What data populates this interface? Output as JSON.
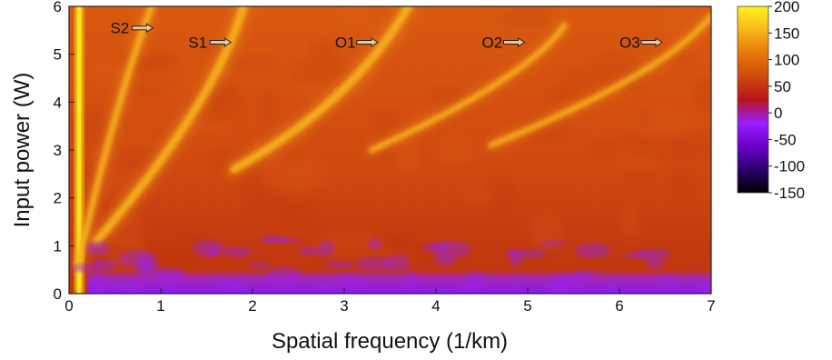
{
  "chart_data": {
    "type": "heatmap",
    "xlabel": "Spatial frequency (1/km)",
    "ylabel": "Input power (W)",
    "xlim": [
      0,
      7
    ],
    "ylim": [
      0,
      6
    ],
    "x_ticks": [
      0,
      1,
      2,
      3,
      4,
      5,
      6,
      7
    ],
    "y_ticks": [
      0,
      1,
      2,
      3,
      4,
      5,
      6
    ],
    "colorbar": {
      "range": [
        -150,
        200
      ],
      "ticks": [
        200,
        150,
        100,
        50,
        0,
        -50,
        -100,
        -150
      ],
      "colors": [
        "#000000",
        "#2a006e",
        "#6a00c8",
        "#9a1eff",
        "#b8141a",
        "#d04a0c",
        "#e8780a",
        "#f8b81a",
        "#fff21a"
      ]
    },
    "background_value": 80,
    "low_power_band": {
      "value": -40,
      "y_range": [
        0,
        0.5
      ]
    },
    "features": [
      {
        "label": "S2",
        "points": [
          [
            0.1,
            0.6
          ],
          [
            0.5,
            4.0
          ],
          [
            0.9,
            6.0
          ]
        ]
      },
      {
        "label": "S1",
        "points": [
          [
            0.3,
            1.1
          ],
          [
            1.6,
            4.0
          ],
          [
            1.9,
            6.0
          ]
        ]
      },
      {
        "label": "O1",
        "points": [
          [
            1.8,
            2.6
          ],
          [
            3.1,
            4.0
          ],
          [
            3.7,
            6.0
          ]
        ]
      },
      {
        "label": "O2",
        "points": [
          [
            3.3,
            3.0
          ],
          [
            5.0,
            4.5
          ],
          [
            5.4,
            5.6
          ]
        ]
      },
      {
        "label": "O3",
        "points": [
          [
            4.6,
            3.1
          ],
          [
            6.5,
            4.6
          ],
          [
            7.0,
            5.8
          ]
        ]
      }
    ],
    "annotations": [
      {
        "label": "S2",
        "x": 0.45,
        "y": 5.55
      },
      {
        "label": "S1",
        "x": 1.3,
        "y": 5.25
      },
      {
        "label": "O1",
        "x": 2.9,
        "y": 5.25
      },
      {
        "label": "O2",
        "x": 4.5,
        "y": 5.25
      },
      {
        "label": "O3",
        "x": 6.0,
        "y": 5.25
      }
    ]
  }
}
